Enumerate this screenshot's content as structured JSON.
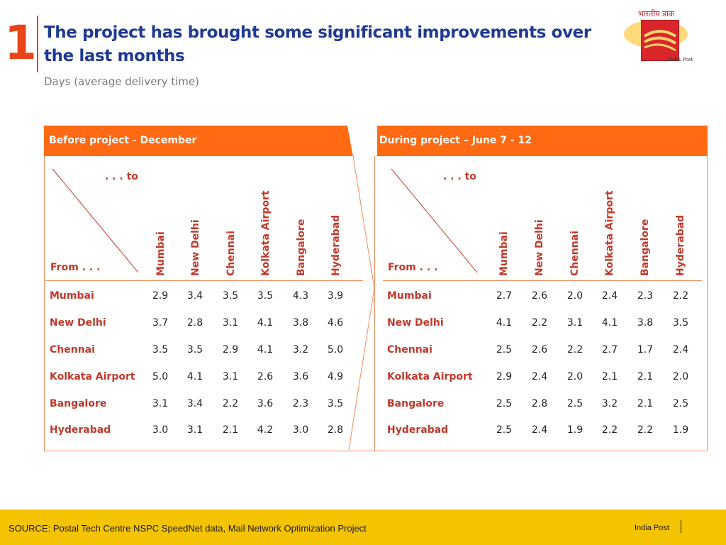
{
  "slide_number": "1",
  "title": "The project has brought some significant improvements over the last months",
  "subtitle": "Days (average delivery time)",
  "logo": {
    "hindi": "भारतीय डाक",
    "text": "India Post",
    "colors": {
      "red": "#D9262B",
      "yellow": "#FFD66B"
    }
  },
  "colors": {
    "accent": "#FF6A13",
    "title": "#1F3A93",
    "label": "#C0392B",
    "footer": "#F5C400"
  },
  "tables": [
    {
      "heading": "Before project - December",
      "to_label": ". . . to",
      "from_label": "From . . .",
      "columns": [
        "Mumbai",
        "New Delhi",
        "Chennai",
        "Kolkata Airport",
        "Bangalore",
        "Hyderabad"
      ],
      "rows": [
        {
          "label": "Mumbai",
          "values": [
            "2.9",
            "3.4",
            "3.5",
            "3.5",
            "4.3",
            "3.9"
          ]
        },
        {
          "label": "New Delhi",
          "values": [
            "3.7",
            "2.8",
            "3.1",
            "4.1",
            "3.8",
            "4.6"
          ]
        },
        {
          "label": "Chennai",
          "values": [
            "3.5",
            "3.5",
            "2.9",
            "4.1",
            "3.2",
            "5.0"
          ]
        },
        {
          "label": "Kolkata Airport",
          "values": [
            "5.0",
            "4.1",
            "3.1",
            "2.6",
            "3.6",
            "4.9"
          ]
        },
        {
          "label": "Bangalore",
          "values": [
            "3.1",
            "3.4",
            "2.2",
            "3.6",
            "2.3",
            "3.5"
          ]
        },
        {
          "label": "Hyderabad",
          "values": [
            "3.0",
            "3.1",
            "2.1",
            "4.2",
            "3.0",
            "2.8"
          ]
        }
      ]
    },
    {
      "heading": "During project – June 7 - 12",
      "to_label": ". . . to",
      "from_label": "From . . .",
      "columns": [
        "Mumbai",
        "New Delhi",
        "Chennai",
        "Kolkata Airport",
        "Bangalore",
        "Hyderabad"
      ],
      "rows": [
        {
          "label": "Mumbai",
          "values": [
            "2.7",
            "2.6",
            "2.0",
            "2.4",
            "2.3",
            "2.2"
          ]
        },
        {
          "label": "New Delhi",
          "values": [
            "4.1",
            "2.2",
            "3.1",
            "4.1",
            "3.8",
            "3.5"
          ]
        },
        {
          "label": "Chennai",
          "values": [
            "2.5",
            "2.6",
            "2.2",
            "2.7",
            "1.7",
            "2.4"
          ]
        },
        {
          "label": "Kolkata Airport",
          "values": [
            "2.9",
            "2.4",
            "2.0",
            "2.1",
            "2.1",
            "2.0"
          ]
        },
        {
          "label": "Bangalore",
          "values": [
            "2.5",
            "2.8",
            "2.5",
            "3.2",
            "2.1",
            "2.5"
          ]
        },
        {
          "label": "Hyderabad",
          "values": [
            "2.5",
            "2.4",
            "1.9",
            "2.2",
            "2.2",
            "1.9"
          ]
        }
      ]
    }
  ],
  "footer": {
    "source": "SOURCE: Postal Tech Centre NSPC SpeedNet data, Mail Network Optimization Project",
    "brand": "India Post"
  }
}
